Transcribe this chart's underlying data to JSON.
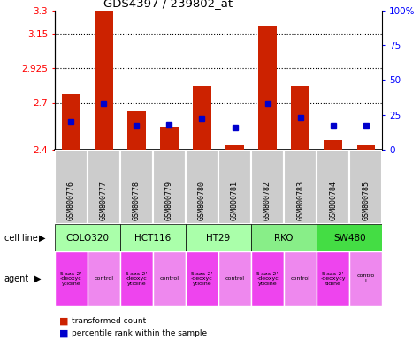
{
  "title": "GDS4397 / 239802_at",
  "samples": [
    "GSM800776",
    "GSM800777",
    "GSM800778",
    "GSM800779",
    "GSM800780",
    "GSM800781",
    "GSM800782",
    "GSM800783",
    "GSM800784",
    "GSM800785"
  ],
  "transformed_counts": [
    2.76,
    3.3,
    2.65,
    2.55,
    2.81,
    2.43,
    3.2,
    2.81,
    2.46,
    2.43
  ],
  "percentile_ranks": [
    20,
    33,
    17,
    18,
    22,
    16,
    33,
    23,
    17,
    17
  ],
  "y_min": 2.4,
  "y_max": 3.3,
  "y_ticks": [
    2.4,
    2.7,
    2.925,
    3.15,
    3.3
  ],
  "y_tick_labels": [
    "2.4",
    "2.7",
    "2.925",
    "3.15",
    "3.3"
  ],
  "right_y_ticks": [
    0,
    25,
    50,
    75,
    100
  ],
  "right_y_tick_labels": [
    "0",
    "25",
    "50",
    "75",
    "100%"
  ],
  "bar_color": "#cc2200",
  "dot_color": "#0000cc",
  "bar_width": 0.55,
  "cell_lines": [
    {
      "name": "COLO320",
      "start": 0,
      "end": 2,
      "color": "#aaffaa"
    },
    {
      "name": "HCT116",
      "start": 2,
      "end": 4,
      "color": "#aaffaa"
    },
    {
      "name": "HT29",
      "start": 4,
      "end": 6,
      "color": "#aaffaa"
    },
    {
      "name": "RKO",
      "start": 6,
      "end": 8,
      "color": "#88ee88"
    },
    {
      "name": "SW480",
      "start": 8,
      "end": 10,
      "color": "#44dd44"
    }
  ],
  "agents": [
    {
      "name": "5-aza-2'\n-deoxyc\nytidine",
      "color": "#ee44ee"
    },
    {
      "name": "control",
      "color": "#ee88ee"
    },
    {
      "name": "5-aza-2'\n-deoxyc\nytidine",
      "color": "#ee44ee"
    },
    {
      "name": "control",
      "color": "#ee88ee"
    },
    {
      "name": "5-aza-2'\n-deoxyc\nytidine",
      "color": "#ee44ee"
    },
    {
      "name": "control",
      "color": "#ee88ee"
    },
    {
      "name": "5-aza-2'\n-deoxyc\nytidine",
      "color": "#ee44ee"
    },
    {
      "name": "control",
      "color": "#ee88ee"
    },
    {
      "name": "5-aza-2'\n-deoxycy\ntidine",
      "color": "#ee44ee"
    },
    {
      "name": "contro\nl",
      "color": "#ee88ee"
    }
  ],
  "legend_red": "transformed count",
  "legend_blue": "percentile rank within the sample",
  "gsm_bg_color": "#cccccc",
  "gsm_border_color": "#999999"
}
